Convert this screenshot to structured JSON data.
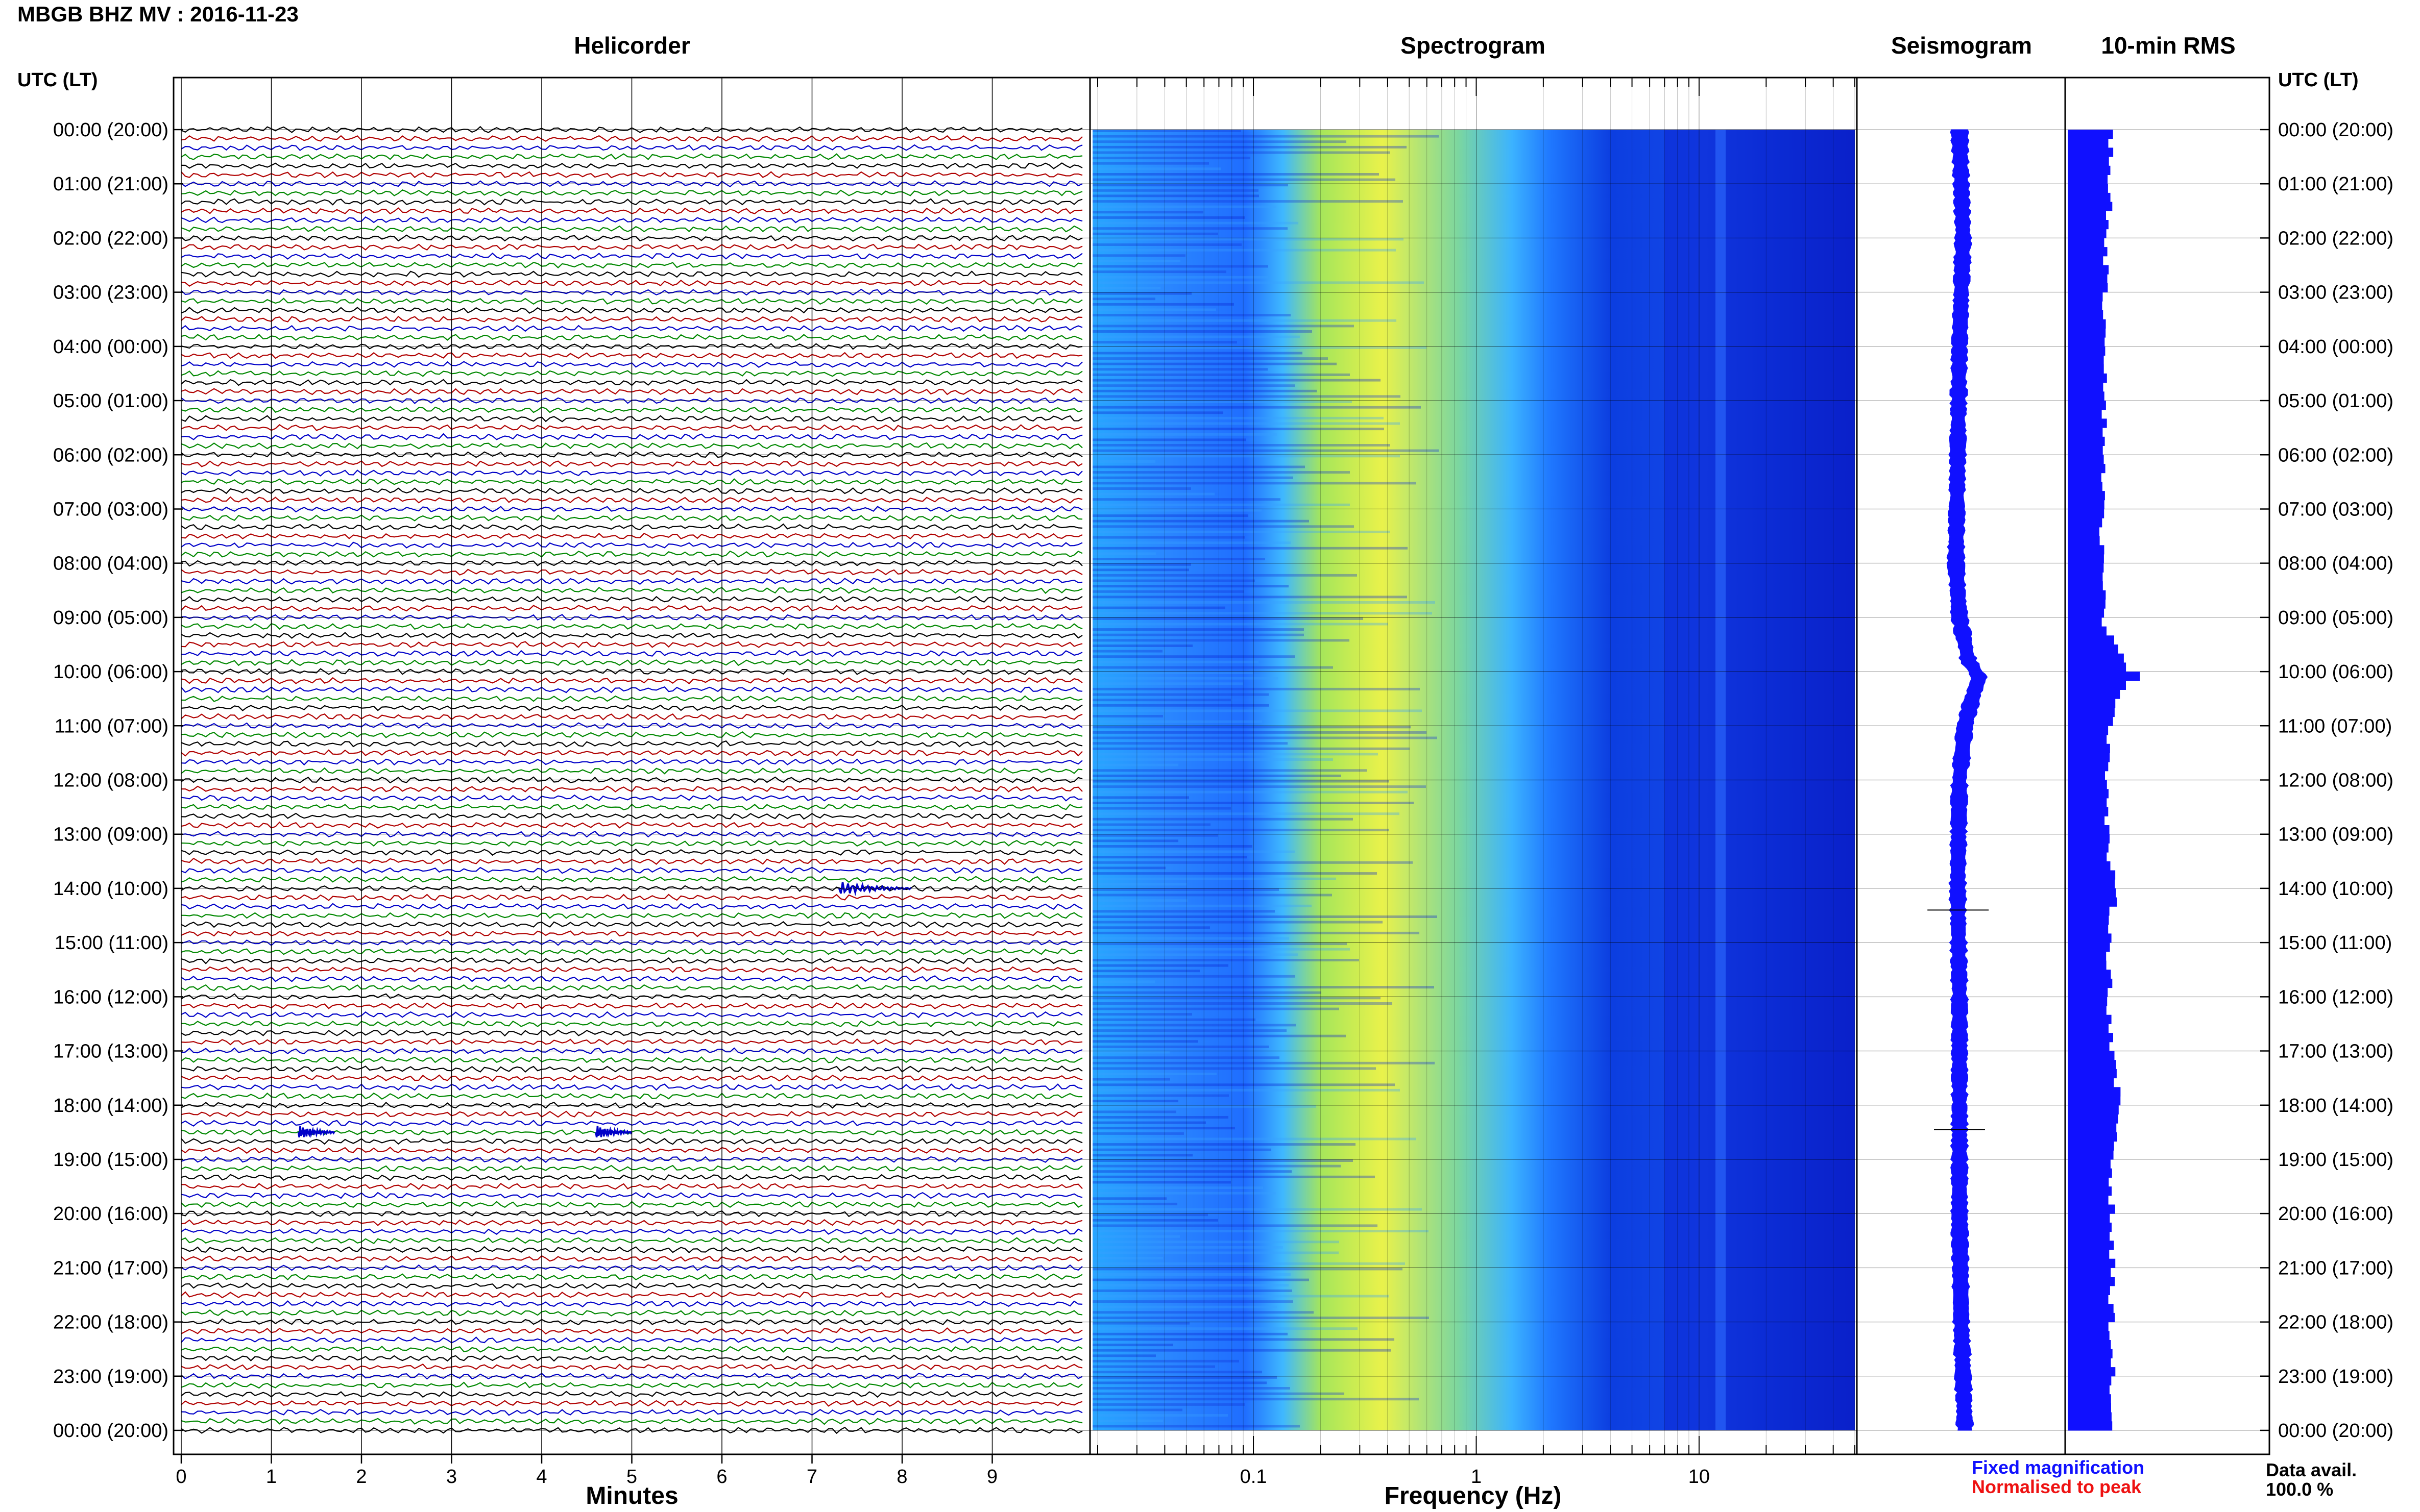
{
  "title": "MBGB BHZ MV : 2016-11-23",
  "panels": {
    "helicorder": "Helicorder",
    "spectrogram": "Spectrogram",
    "seismogram": "Seismogram",
    "rms": "10-min RMS"
  },
  "time_header_left": "UTC (LT)",
  "time_header_right": "UTC (LT)",
  "xlabels": {
    "helicorder": "Minutes",
    "spectrogram": "Frequency (Hz)"
  },
  "legend": {
    "fixed": "Fixed magnification",
    "fixed_color": "#1010ff",
    "normalised": "Normalised to peak",
    "normalised_color": "#ee1111"
  },
  "data_avail": {
    "label": "Data avail.",
    "value": "100.0 %"
  },
  "trace_colors": [
    "#000000",
    "#b00000",
    "#0000c8",
    "#008800"
  ],
  "chart_data": [
    {
      "type": "line",
      "name": "Helicorder",
      "xlabel": "Minutes",
      "x_ticks": [
        0,
        1,
        2,
        3,
        4,
        5,
        6,
        7,
        8,
        9
      ],
      "xlim": [
        0,
        10
      ],
      "y_ticks": [
        "00:00 (20:00)",
        "01:00 (21:00)",
        "02:00 (22:00)",
        "03:00 (23:00)",
        "04:00 (00:00)",
        "05:00 (01:00)",
        "06:00 (02:00)",
        "07:00 (03:00)",
        "08:00 (04:00)",
        "09:00 (05:00)",
        "10:00 (06:00)",
        "11:00 (07:00)",
        "12:00 (08:00)",
        "13:00 (09:00)",
        "14:00 (10:00)",
        "15:00 (11:00)",
        "16:00 (12:00)",
        "17:00 (13:00)",
        "18:00 (14:00)",
        "19:00 (15:00)",
        "20:00 (16:00)",
        "21:00 (17:00)",
        "22:00 (18:00)",
        "23:00 (19:00)",
        "00:00 (20:00)"
      ],
      "lines_per_hour": 6,
      "events": [
        {
          "hour": 14.0,
          "minute": 7.3,
          "duration_min": 0.8
        },
        {
          "hour": 18.5,
          "minute": 1.3,
          "duration_min": 0.4
        },
        {
          "hour": 18.5,
          "minute": 4.6,
          "duration_min": 0.4
        }
      ]
    },
    {
      "type": "heatmap",
      "name": "Spectrogram",
      "xlabel": "Frequency (Hz)",
      "x_scale": "log",
      "xlim": [
        0.02,
        50
      ],
      "x_ticks": [
        0.1,
        1,
        10
      ],
      "colormap": [
        "#0a1fd0",
        "#1b63ff",
        "#3fb8ff",
        "#8ee07a",
        "#e6f24a"
      ],
      "peak_band_hz": [
        0.2,
        0.5
      ]
    },
    {
      "type": "line",
      "name": "Seismogram",
      "hours": [
        0,
        2,
        4,
        6,
        8,
        9,
        9.8,
        10.1,
        10.5,
        11,
        12,
        14,
        16,
        18,
        20,
        22,
        24
      ],
      "offset": [
        0,
        0.1,
        0.0,
        -0.05,
        -0.1,
        0.0,
        0.25,
        0.55,
        0.35,
        0.15,
        0.0,
        -0.05,
        0.0,
        0.0,
        0.0,
        0.05,
        0.15
      ]
    },
    {
      "type": "bar",
      "name": "10-min RMS",
      "hours": [
        0,
        1,
        2,
        3,
        4,
        5,
        6,
        7,
        8,
        9,
        10,
        10.5,
        11,
        12,
        13,
        14,
        15,
        16,
        17,
        18,
        18.5,
        19,
        20,
        21,
        22,
        23
      ],
      "values": [
        0.35,
        0.35,
        0.32,
        0.3,
        0.32,
        0.3,
        0.3,
        0.28,
        0.28,
        0.3,
        0.55,
        0.4,
        0.35,
        0.32,
        0.32,
        0.38,
        0.34,
        0.34,
        0.36,
        0.42,
        0.4,
        0.36,
        0.36,
        0.36,
        0.36,
        0.36
      ]
    }
  ]
}
